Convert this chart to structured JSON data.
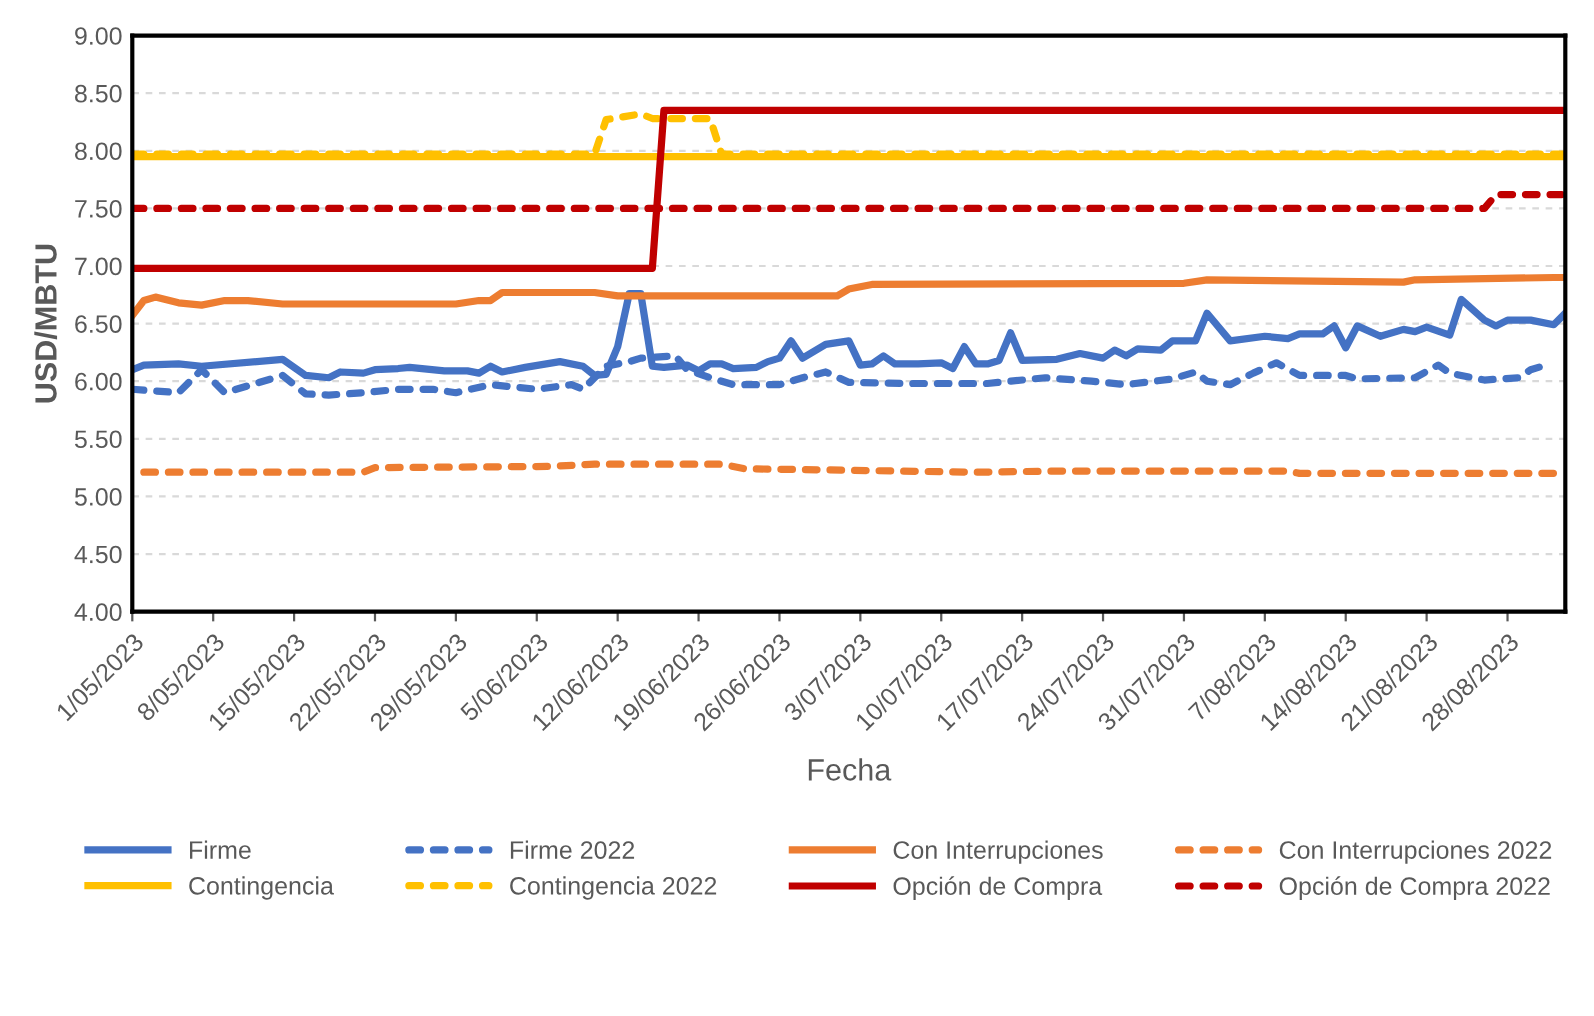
{
  "chart_data": {
    "type": "line",
    "xlabel": "Fecha",
    "ylabel": "USD/MBTU",
    "xlim": [
      "2023-05-01",
      "2023-09-02"
    ],
    "xticks": [
      {
        "value": "2023-05-01",
        "label": "1/05/2023"
      },
      {
        "value": "2023-05-08",
        "label": "8/05/2023"
      },
      {
        "value": "2023-05-15",
        "label": "15/05/2023"
      },
      {
        "value": "2023-05-22",
        "label": "22/05/2023"
      },
      {
        "value": "2023-05-29",
        "label": "29/05/2023"
      },
      {
        "value": "2023-06-05",
        "label": "5/06/2023"
      },
      {
        "value": "2023-06-12",
        "label": "12/06/2023"
      },
      {
        "value": "2023-06-19",
        "label": "19/06/2023"
      },
      {
        "value": "2023-06-26",
        "label": "26/06/2023"
      },
      {
        "value": "2023-07-03",
        "label": "3/07/2023"
      },
      {
        "value": "2023-07-10",
        "label": "10/07/2023"
      },
      {
        "value": "2023-07-17",
        "label": "17/07/2023"
      },
      {
        "value": "2023-07-24",
        "label": "24/07/2023"
      },
      {
        "value": "2023-07-31",
        "label": "31/07/2023"
      },
      {
        "value": "2023-08-07",
        "label": "7/08/2023"
      },
      {
        "value": "2023-08-14",
        "label": "14/08/2023"
      },
      {
        "value": "2023-08-21",
        "label": "21/08/2023"
      },
      {
        "value": "2023-08-28",
        "label": "28/08/2023"
      }
    ],
    "ylim": [
      4.0,
      9.0
    ],
    "yticks": [
      {
        "value": 4.0,
        "label": "4.00"
      },
      {
        "value": 4.5,
        "label": "4.50"
      },
      {
        "value": 5.0,
        "label": "5.00"
      },
      {
        "value": 5.5,
        "label": "5.50"
      },
      {
        "value": 6.0,
        "label": "6.00"
      },
      {
        "value": 6.5,
        "label": "6.50"
      },
      {
        "value": 7.0,
        "label": "7.00"
      },
      {
        "value": 7.5,
        "label": "7.50"
      },
      {
        "value": 8.0,
        "label": "8.00"
      },
      {
        "value": 8.5,
        "label": "8.50"
      },
      {
        "value": 9.0,
        "label": "9.00"
      }
    ],
    "grid": "y",
    "legend": "bottom",
    "marker": "none",
    "series": [
      {
        "name": "Firme",
        "color": "#4472c4",
        "line_style": "solid",
        "x": [
          "2023-05-01",
          "2023-05-02",
          "2023-05-05",
          "2023-05-07",
          "2023-05-14",
          "2023-05-16",
          "2023-05-18",
          "2023-05-19",
          "2023-05-21",
          "2023-05-22",
          "2023-05-24",
          "2023-05-25",
          "2023-05-28",
          "2023-05-30",
          "2023-05-31",
          "2023-06-01",
          "2023-06-02",
          "2023-06-04",
          "2023-06-07",
          "2023-06-09",
          "2023-06-10",
          "2023-06-11",
          "2023-06-12",
          "2023-06-13",
          "2023-06-14",
          "2023-06-15",
          "2023-06-16",
          "2023-06-18",
          "2023-06-19",
          "2023-06-20",
          "2023-06-21",
          "2023-06-22",
          "2023-06-24",
          "2023-06-25",
          "2023-06-26",
          "2023-06-27",
          "2023-06-28",
          "2023-06-30",
          "2023-07-02",
          "2023-07-03",
          "2023-07-04",
          "2023-07-05",
          "2023-07-06",
          "2023-07-08",
          "2023-07-10",
          "2023-07-11",
          "2023-07-12",
          "2023-07-13",
          "2023-07-14",
          "2023-07-15",
          "2023-07-16",
          "2023-07-17",
          "2023-07-20",
          "2023-07-22",
          "2023-07-24",
          "2023-07-25",
          "2023-07-26",
          "2023-07-27",
          "2023-07-29",
          "2023-07-30",
          "2023-08-01",
          "2023-08-02",
          "2023-08-04",
          "2023-08-07",
          "2023-08-09",
          "2023-08-10",
          "2023-08-12",
          "2023-08-13",
          "2023-08-14",
          "2023-08-15",
          "2023-08-17",
          "2023-08-19",
          "2023-08-20",
          "2023-08-21",
          "2023-08-23",
          "2023-08-24",
          "2023-08-26",
          "2023-08-27",
          "2023-08-28",
          "2023-08-30",
          "2023-09-01",
          "2023-09-02"
        ],
        "values": [
          6.1,
          6.14,
          6.15,
          6.13,
          6.19,
          6.05,
          6.03,
          6.08,
          6.07,
          6.1,
          6.11,
          6.12,
          6.09,
          6.09,
          6.07,
          6.13,
          6.08,
          6.12,
          6.17,
          6.13,
          6.05,
          6.06,
          6.3,
          6.76,
          6.76,
          6.13,
          6.12,
          6.14,
          6.09,
          6.15,
          6.15,
          6.11,
          6.12,
          6.17,
          6.2,
          6.35,
          6.2,
          6.32,
          6.35,
          6.14,
          6.15,
          6.22,
          6.15,
          6.15,
          6.16,
          6.11,
          6.3,
          6.15,
          6.15,
          6.18,
          6.42,
          6.18,
          6.19,
          6.24,
          6.2,
          6.27,
          6.22,
          6.28,
          6.27,
          6.35,
          6.35,
          6.59,
          6.35,
          6.39,
          6.37,
          6.41,
          6.41,
          6.48,
          6.29,
          6.48,
          6.39,
          6.45,
          6.43,
          6.47,
          6.4,
          6.71,
          6.53,
          6.48,
          6.53,
          6.53,
          6.49,
          6.59
        ]
      },
      {
        "name": "Firme 2022",
        "color": "#4472c4",
        "line_style": "dashed",
        "x": [
          "2023-05-01",
          "2023-05-05",
          "2023-05-07",
          "2023-05-09",
          "2023-05-14",
          "2023-05-16",
          "2023-05-18",
          "2023-05-21",
          "2023-05-24",
          "2023-05-27",
          "2023-05-29",
          "2023-06-01",
          "2023-06-05",
          "2023-06-08",
          "2023-06-09",
          "2023-06-11",
          "2023-06-13",
          "2023-06-14",
          "2023-06-17",
          "2023-06-18",
          "2023-06-20",
          "2023-06-22",
          "2023-06-26",
          "2023-06-28",
          "2023-06-30",
          "2023-07-02",
          "2023-07-07",
          "2023-07-10",
          "2023-07-14",
          "2023-07-16",
          "2023-07-19",
          "2023-07-23",
          "2023-07-26",
          "2023-07-30",
          "2023-08-01",
          "2023-08-02",
          "2023-08-04",
          "2023-08-06",
          "2023-08-08",
          "2023-08-10",
          "2023-08-14",
          "2023-08-15",
          "2023-08-20",
          "2023-08-22",
          "2023-08-23",
          "2023-08-26",
          "2023-08-29",
          "2023-08-30",
          "2023-08-31"
        ],
        "values": [
          5.93,
          5.9,
          6.1,
          5.9,
          6.05,
          5.89,
          5.88,
          5.9,
          5.93,
          5.93,
          5.9,
          5.97,
          5.93,
          5.97,
          5.93,
          6.13,
          6.17,
          6.2,
          6.22,
          6.1,
          6.03,
          5.97,
          5.97,
          6.03,
          6.08,
          5.99,
          5.98,
          5.98,
          5.98,
          6.0,
          6.03,
          6.0,
          5.97,
          6.02,
          6.08,
          6.0,
          5.97,
          6.07,
          6.16,
          6.05,
          6.05,
          6.02,
          6.03,
          6.14,
          6.07,
          6.01,
          6.03,
          6.1,
          6.13
        ]
      },
      {
        "name": "Con Interrupciones",
        "color": "#ed7d31",
        "line_style": "solid",
        "x": [
          "2023-05-01",
          "2023-05-02",
          "2023-05-03",
          "2023-05-05",
          "2023-05-07",
          "2023-05-09",
          "2023-05-11",
          "2023-05-14",
          "2023-05-29",
          "2023-05-31",
          "2023-06-01",
          "2023-06-02",
          "2023-06-10",
          "2023-06-12",
          "2023-07-01",
          "2023-07-02",
          "2023-07-04",
          "2023-07-31",
          "2023-08-02",
          "2023-08-19",
          "2023-08-20",
          "2023-09-01",
          "2023-09-02"
        ],
        "values": [
          6.57,
          6.7,
          6.73,
          6.68,
          6.66,
          6.7,
          6.7,
          6.67,
          6.67,
          6.7,
          6.7,
          6.77,
          6.77,
          6.74,
          6.74,
          6.8,
          6.84,
          6.85,
          6.88,
          6.86,
          6.88,
          6.9,
          6.9
        ]
      },
      {
        "name": "Con Interrupciones 2022",
        "color": "#ed7d31",
        "line_style": "dashed",
        "x": [
          "2023-05-02",
          "2023-05-21",
          "2023-05-22",
          "2023-06-06",
          "2023-06-10",
          "2023-06-21",
          "2023-06-23",
          "2023-06-30",
          "2023-07-13",
          "2023-07-20",
          "2023-08-09",
          "2023-08-10",
          "2023-09-02"
        ],
        "values": [
          5.21,
          5.21,
          5.25,
          5.26,
          5.28,
          5.28,
          5.24,
          5.23,
          5.21,
          5.22,
          5.22,
          5.2,
          5.2
        ]
      },
      {
        "name": "Contingencia",
        "color": "#ffc000",
        "line_style": "solid",
        "x": [
          "2023-05-01",
          "2023-09-02"
        ],
        "values": [
          7.95,
          7.95
        ]
      },
      {
        "name": "Contingencia 2022",
        "color": "#ffc000",
        "line_style": "dashed",
        "x": [
          "2023-05-01",
          "2023-06-10",
          "2023-06-11",
          "2023-06-14",
          "2023-06-15",
          "2023-06-20",
          "2023-06-21",
          "2023-09-02"
        ],
        "values": [
          7.97,
          7.97,
          8.27,
          8.32,
          8.28,
          8.28,
          7.97,
          7.97
        ]
      },
      {
        "name": "Opción de Compra",
        "color": "#c00000",
        "line_style": "solid",
        "x": [
          "2023-05-01",
          "2023-06-15",
          "2023-06-16",
          "2023-09-02"
        ],
        "values": [
          6.98,
          6.98,
          8.35,
          8.35
        ]
      },
      {
        "name": "Opción de Compra 2022",
        "color": "#c00000",
        "line_style": "dashed",
        "x": [
          "2023-05-01",
          "2023-08-26",
          "2023-08-27",
          "2023-09-02"
        ],
        "values": [
          7.5,
          7.5,
          7.62,
          7.62
        ]
      }
    ]
  }
}
